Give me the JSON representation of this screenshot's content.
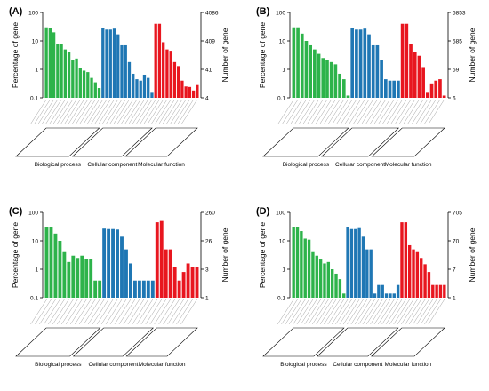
{
  "chart_data": [
    {
      "type": "bar",
      "panel_label": "(A)",
      "ylabel_left": "Percentage of gene",
      "ylabel_right": "Number of gene",
      "y_scale": "log",
      "ylim": [
        0.1,
        100
      ],
      "yticks_left": [
        "100",
        "10",
        "1",
        "0.1"
      ],
      "yticks_right": [
        "4086",
        "409",
        "41",
        "4"
      ],
      "groups": [
        {
          "name": "Biological process",
          "color": "#2db34a",
          "values": [
            30,
            28,
            20,
            8,
            7.5,
            5,
            4,
            2.2,
            2.4,
            1.1,
            0.9,
            0.8,
            0.5,
            0.35,
            0.22
          ]
        },
        {
          "name": "Cellular component",
          "color": "#1f77b4",
          "values": [
            28,
            25,
            25,
            27,
            17,
            7,
            7,
            1.8,
            0.7,
            0.45,
            0.4,
            0.65,
            0.5,
            0.15
          ]
        },
        {
          "name": "Molecular function",
          "color": "#e8161f",
          "values": [
            40,
            40,
            9,
            5,
            4.5,
            1.8,
            1.3,
            0.4,
            0.25,
            0.24,
            0.18,
            0.28
          ]
        }
      ]
    },
    {
      "type": "bar",
      "panel_label": "(B)",
      "ylabel_left": "Percentage of gene",
      "ylabel_right": "Number of gene",
      "y_scale": "log",
      "ylim": [
        0.1,
        100
      ],
      "yticks_left": [
        "100",
        "10",
        "1",
        "0.1"
      ],
      "yticks_right": [
        "5853",
        "585",
        "59",
        "6"
      ],
      "groups": [
        {
          "name": "Biological process",
          "color": "#2db34a",
          "values": [
            30,
            30,
            18,
            10,
            7,
            5,
            3.5,
            2.5,
            2.2,
            1.8,
            1.5,
            0.7,
            0.45,
            0.12
          ]
        },
        {
          "name": "Cellular component",
          "color": "#1f77b4",
          "values": [
            28,
            25,
            25,
            27,
            17,
            7,
            7,
            2.2,
            0.45,
            0.4,
            0.4,
            0.4
          ]
        },
        {
          "name": "Molecular function",
          "color": "#e8161f",
          "values": [
            40,
            40,
            8,
            4,
            3,
            1.2,
            0.15,
            0.32,
            0.4,
            0.45,
            0.12
          ]
        }
      ]
    },
    {
      "type": "bar",
      "panel_label": "(C)",
      "ylabel_left": "Percentage of gene",
      "ylabel_right": "Number of gene",
      "y_scale": "log",
      "ylim": [
        0.1,
        100
      ],
      "yticks_left": [
        "100",
        "10",
        "1",
        "0.1"
      ],
      "yticks_right": [
        "260",
        "26",
        "3",
        "1"
      ],
      "groups": [
        {
          "name": "Biological process",
          "color": "#2db34a",
          "values": [
            30,
            30,
            18,
            10,
            4,
            1.8,
            3,
            2.5,
            3,
            2.3,
            2.3,
            0.4,
            0.4
          ]
        },
        {
          "name": "Cellular component",
          "color": "#1f77b4",
          "values": [
            27,
            26,
            26,
            25,
            14,
            5,
            1.6,
            0.4,
            0.4,
            0.4,
            0.4,
            0.4
          ]
        },
        {
          "name": "Molecular function",
          "color": "#e8161f",
          "values": [
            45,
            50,
            5,
            5,
            1.2,
            0.4,
            0.8,
            1.6,
            1.2,
            1.2
          ]
        }
      ]
    },
    {
      "type": "bar",
      "panel_label": "(D)",
      "ylabel_left": "Percentage of gene",
      "ylabel_right": "Number of gene",
      "y_scale": "log",
      "ylim": [
        0.1,
        100
      ],
      "yticks_left": [
        "100",
        "10",
        "1",
        "0.1"
      ],
      "yticks_right": [
        "705",
        "70",
        "7",
        "1"
      ],
      "groups": [
        {
          "name": "Biological process",
          "color": "#2db34a",
          "values": [
            30,
            30,
            22,
            12,
            11,
            4,
            3,
            2.2,
            1.6,
            1.8,
            1,
            0.7,
            0.45,
            0.14
          ]
        },
        {
          "name": "Cellular component",
          "color": "#1f77b4",
          "values": [
            30,
            26,
            26,
            28,
            14,
            5,
            5,
            0.14,
            0.28,
            0.28,
            0.14,
            0.14,
            0.14,
            0.28
          ]
        },
        {
          "name": "Molecular function",
          "color": "#e8161f",
          "values": [
            45,
            45,
            7,
            5,
            4,
            2.5,
            1.5,
            0.8,
            0.28,
            0.28,
            0.28,
            0.28
          ]
        }
      ]
    }
  ]
}
